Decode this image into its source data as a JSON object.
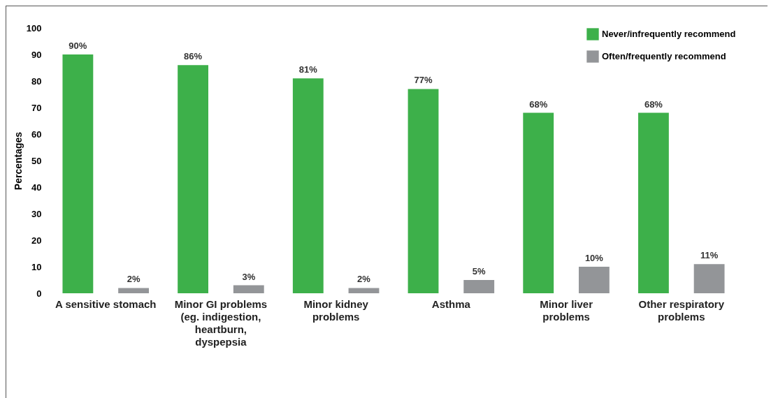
{
  "chart_data": {
    "type": "bar",
    "ylabel": "Percentages",
    "categories": [
      "A sensitive stomach",
      "Minor GI problems (eg. indigestion, heartburn, dyspepsia",
      "Minor kidney problems",
      "Asthma",
      "Minor liver problems",
      "Other respiratory problems"
    ],
    "series": [
      {
        "name": "Never/infrequently recommend",
        "color": "#3db04a",
        "values": [
          90,
          86,
          81,
          77,
          68,
          68
        ],
        "value_labels": [
          "90%",
          "86%",
          "81%",
          "77%",
          "68%",
          "68%"
        ]
      },
      {
        "name": "Often/frequently recommend",
        "color": "#939598",
        "values": [
          2,
          3,
          2,
          5,
          10,
          11
        ],
        "value_labels": [
          "2%",
          "3%",
          "2%",
          "5%",
          "10%",
          "11%"
        ]
      }
    ],
    "ylim": [
      0,
      100
    ],
    "yticks": [
      0,
      10,
      20,
      30,
      40,
      50,
      60,
      70,
      80,
      90,
      100
    ],
    "grid": false,
    "legend": "top right"
  }
}
